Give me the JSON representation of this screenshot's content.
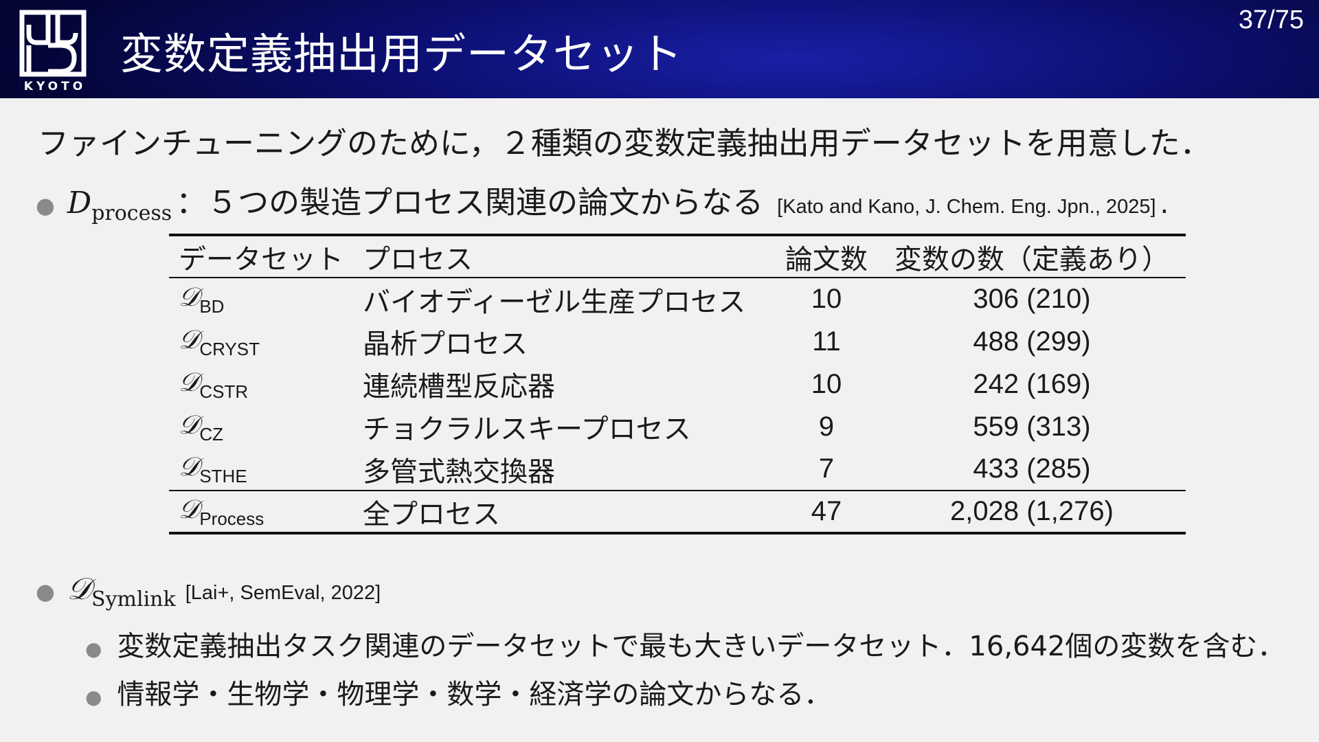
{
  "header": {
    "logo_text": "KYOTO",
    "title": "変数定義抽出用データセット",
    "page_number": "37/75"
  },
  "lead": "ファインチューニングのために，２種類の変数定義抽出用データセットを用意した．",
  "bullet1": {
    "symbol": "D",
    "subscript": "process",
    "text": "：５つの製造プロセス関連の論文からなる",
    "citation": "[Kato and Kano, J. Chem. Eng. Jpn., 2025]",
    "period": "."
  },
  "table": {
    "headers": [
      "データセット",
      "プロセス",
      "論文数",
      "変数の数（定義あり）"
    ],
    "rows": [
      {
        "symbol": "𝒟",
        "sub": "BD",
        "process": "バイオディーゼル生産プロセス",
        "papers": "10",
        "variables": "306 (210)"
      },
      {
        "symbol": "𝒟",
        "sub": "CRYST",
        "process": "晶析プロセス",
        "papers": "11",
        "variables": "488 (299)"
      },
      {
        "symbol": "𝒟",
        "sub": "CSTR",
        "process": "連続槽型反応器",
        "papers": "10",
        "variables": "242 (169)"
      },
      {
        "symbol": "𝒟",
        "sub": "CZ",
        "process": "チョクラルスキープロセス",
        "papers": "9",
        "variables": "559 (313)"
      },
      {
        "symbol": "𝒟",
        "sub": "STHE",
        "process": "多管式熱交換器",
        "papers": "7",
        "variables": "433 (285)"
      }
    ],
    "total": {
      "symbol": "𝒟",
      "sub": "Process",
      "process": "全プロセス",
      "papers": "47",
      "variables": "2,028 (1,276)"
    }
  },
  "bullet2": {
    "symbol": "𝒟",
    "subscript": "Symlink",
    "citation": "[Lai+, SemEval, 2022]",
    "sub_items": [
      "変数定義抽出タスク関連のデータセットで最も大きいデータセット．16,642個の変数を含む．",
      "情報学・生物学・物理学・数学・経済学の論文からなる．"
    ]
  }
}
